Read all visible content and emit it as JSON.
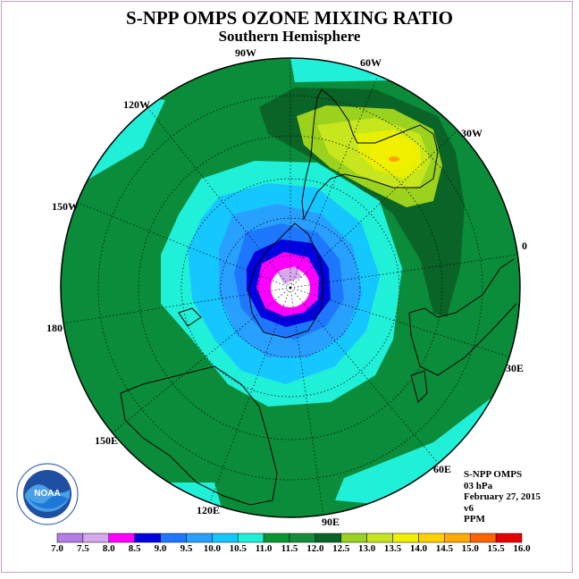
{
  "title": "S-NPP OMPS OZONE MIXING RATIO",
  "subtitle": "Southern Hemisphere",
  "longitudes": [
    {
      "label": "90W"
    },
    {
      "label": "60W"
    },
    {
      "label": "30W"
    },
    {
      "label": "0"
    },
    {
      "label": "30E"
    },
    {
      "label": "60E"
    },
    {
      "label": "90E"
    },
    {
      "label": "120E"
    },
    {
      "label": "150E"
    },
    {
      "label": "180"
    },
    {
      "label": "150W"
    },
    {
      "label": "120W"
    }
  ],
  "info": {
    "instrument": "S-NPP OMPS",
    "level": "03 hPa",
    "date": "February 27, 2015",
    "version": "v6",
    "units": "PPM"
  },
  "logo_text": "NOAA",
  "colorbar": {
    "ticks": [
      "7.0",
      "7.5",
      "8.0",
      "8.5",
      "9.0",
      "9.5",
      "10.0",
      "10.5",
      "11.0",
      "11.5",
      "12.0",
      "12.5",
      "13.0",
      "13.5",
      "14.0",
      "14.5",
      "15.0",
      "15.5",
      "16.0"
    ],
    "colors": [
      "#b57ee6",
      "#d6a8ee",
      "#ff00ff",
      "#0000e0",
      "#1e78ff",
      "#28a0ff",
      "#14c8ff",
      "#20f0d8",
      "#0a9632",
      "#148c3a",
      "#0a6428",
      "#9bd21e",
      "#c8e61e",
      "#f0f000",
      "#ffd200",
      "#ffaa00",
      "#ff6400",
      "#e60000",
      "#8c5a3c"
    ]
  },
  "colors": {
    "bg_field": "#0a8c3a",
    "dark_field": "#0a6428",
    "coast": "#000000"
  }
}
